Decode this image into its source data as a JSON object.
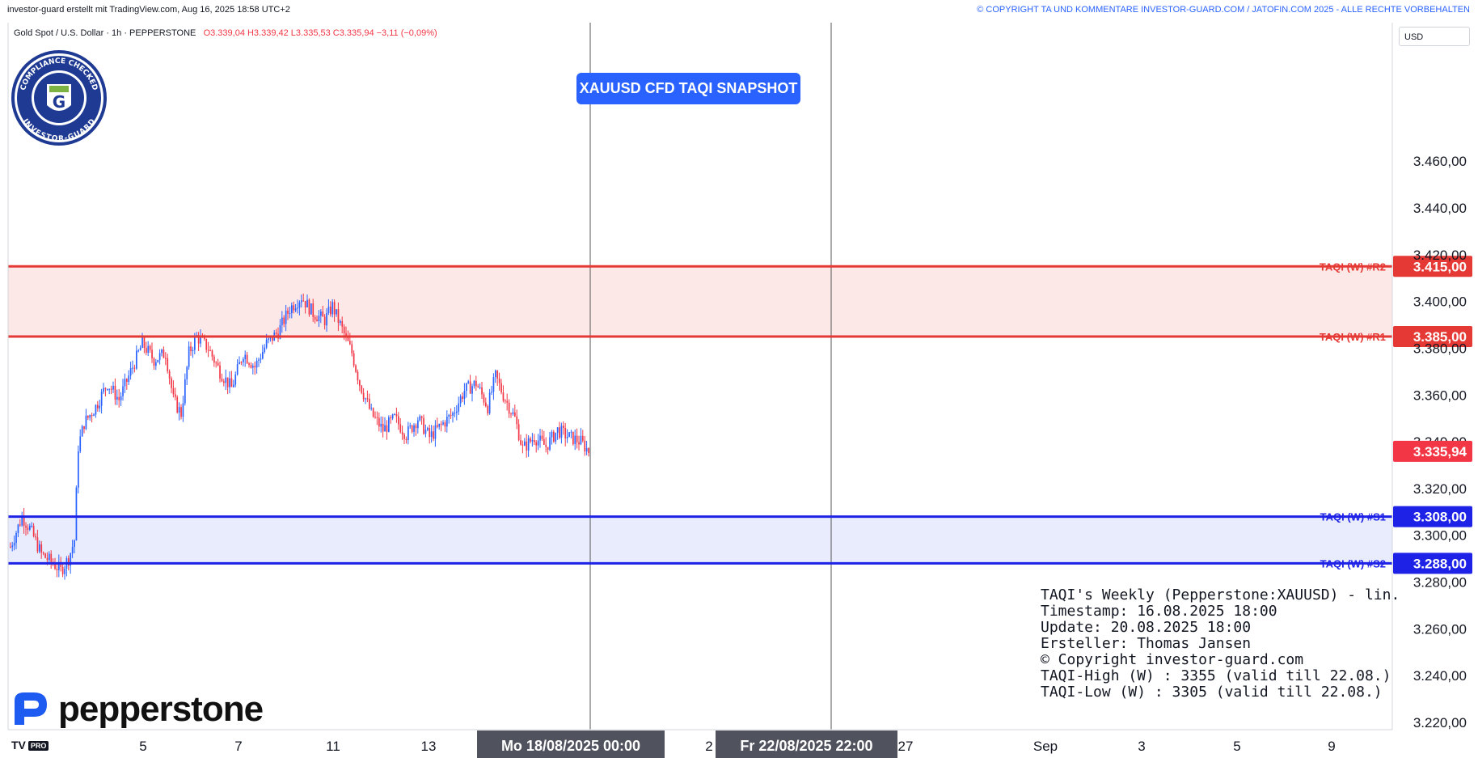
{
  "header": {
    "left": "investor-guard erstellt mit TradingView.com, Aug 16, 2025 18:58 UTC+2",
    "right": "© COPYRIGHT TA UND KOMMENTARE INVESTOR-GUARD.COM / JATOFIN.COM 2025 - ALLE RECHTE VORBEHALTEN"
  },
  "symbol": {
    "name": "Gold Spot / U.S. Dollar · 1h · PEPPERSTONE",
    "ohlc": "O3.339,04  H3.339,42  L3.335,53  C3.335,94  −3,11 (−0,09%)"
  },
  "currency": "USD",
  "title_button": "XAUUSD CFD TAQI SNAPSHOT",
  "badge": {
    "top_text": "COMPLIANCE CHECKED",
    "bottom_text": "INVESTOR-GUARD",
    "letter": "G"
  },
  "brand": "pepperstone",
  "tv_logo": {
    "mark": "TV",
    "pro": "PRO"
  },
  "info_box": [
    "TAQI's Weekly (Pepperstone:XAUUSD) - lin.",
    "",
    "Timestamp: 16.08.2025 18:00",
    "Update: 20.08.2025 18:00",
    "Ersteller: Thomas Jansen",
    "© Copyright investor-guard.com",
    "TAQI-High (W) : 3355 (valid till 22.08.)",
    "TAQI-Low (W) : 3305 (valid till 22.08.)"
  ],
  "colors": {
    "up": "#2962ff",
    "down": "#f23645",
    "resistance": "#e53935",
    "support": "#1e22e6",
    "res_zone": "#fde8e8",
    "sup_zone": "#e8ecfd",
    "current": "#f23645"
  },
  "chart_data": {
    "type": "candlestick",
    "y_ticks": [
      3220,
      3240,
      3260,
      3280,
      3300,
      3320,
      3340,
      3360,
      3380,
      3400,
      3420,
      3440,
      3460
    ],
    "y_tick_labels": [
      "3.220,00",
      "3.240,00",
      "3.260,00",
      "3.280,00",
      "3.300,00",
      "3.320,00",
      "3.340,00",
      "3.360,00",
      "3.380,00",
      "3.400,00",
      "3.420,00",
      "3.440,00",
      "3.460,00"
    ],
    "ylim": [
      3210,
      3485
    ],
    "x_ticks": [
      "5",
      "7",
      "11",
      "13",
      "2",
      "27",
      "Sep",
      "3",
      "5",
      "9"
    ],
    "x_highlights": [
      "Mo 18/08/2025   00:00",
      "Fr 22/08/2025   22:00"
    ],
    "levels": [
      {
        "name": "TAQI (W) #R2",
        "value": 3415,
        "label": "3.415,00",
        "kind": "resistance"
      },
      {
        "name": "TAQI (W) #R1",
        "value": 3385,
        "label": "3.385,00",
        "kind": "resistance"
      },
      {
        "name": "TAQI (W) #S1",
        "value": 3308,
        "label": "3.308,00",
        "kind": "support"
      },
      {
        "name": "TAQI (W) #S2",
        "value": 3288,
        "label": "3.288,00",
        "kind": "support"
      }
    ],
    "current_price": {
      "value": 3335.94,
      "label": "3.335,94"
    },
    "path_keypoints": [
      [
        0,
        3295
      ],
      [
        6,
        3308
      ],
      [
        10,
        3303
      ],
      [
        16,
        3292
      ],
      [
        22,
        3288
      ],
      [
        26,
        3285
      ],
      [
        30,
        3290
      ],
      [
        33,
        3298
      ],
      [
        35,
        3338
      ],
      [
        38,
        3348
      ],
      [
        44,
        3355
      ],
      [
        50,
        3365
      ],
      [
        56,
        3358
      ],
      [
        62,
        3370
      ],
      [
        68,
        3382
      ],
      [
        74,
        3375
      ],
      [
        80,
        3378
      ],
      [
        84,
        3358
      ],
      [
        88,
        3352
      ],
      [
        92,
        3378
      ],
      [
        96,
        3385
      ],
      [
        102,
        3380
      ],
      [
        108,
        3370
      ],
      [
        114,
        3363
      ],
      [
        120,
        3378
      ],
      [
        126,
        3372
      ],
      [
        132,
        3382
      ],
      [
        138,
        3387
      ],
      [
        144,
        3397
      ],
      [
        150,
        3402
      ],
      [
        156,
        3395
      ],
      [
        162,
        3392
      ],
      [
        166,
        3398
      ],
      [
        172,
        3386
      ],
      [
        176,
        3378
      ],
      [
        180,
        3365
      ],
      [
        186,
        3352
      ],
      [
        192,
        3345
      ],
      [
        198,
        3350
      ],
      [
        204,
        3343
      ],
      [
        210,
        3350
      ],
      [
        216,
        3342
      ],
      [
        222,
        3347
      ],
      [
        228,
        3352
      ],
      [
        234,
        3362
      ],
      [
        240,
        3365
      ],
      [
        246,
        3355
      ],
      [
        250,
        3368
      ],
      [
        254,
        3360
      ],
      [
        260,
        3350
      ],
      [
        264,
        3337
      ],
      [
        270,
        3342
      ],
      [
        276,
        3338
      ],
      [
        282,
        3345
      ],
      [
        288,
        3342
      ],
      [
        294,
        3340
      ],
      [
        298,
        3336
      ]
    ]
  }
}
